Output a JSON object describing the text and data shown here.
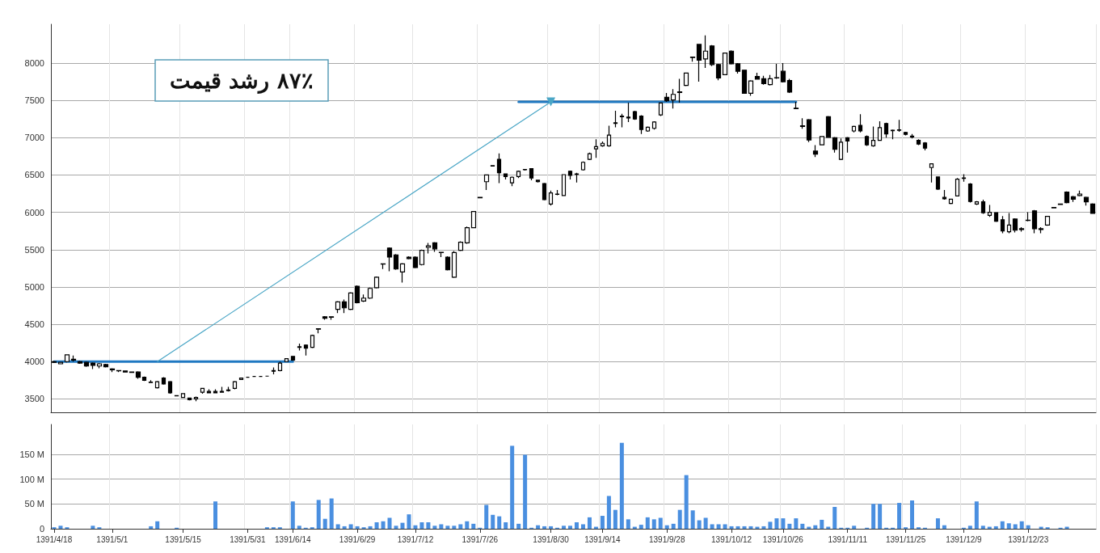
{
  "chart_data": [
    {
      "type": "candlestick",
      "title": "۸۷٪ رشد قیمت",
      "tick_labels": "y",
      "grid": true,
      "line_style": "solid",
      "categories": [
        "1391/4/18",
        null,
        null,
        null,
        null,
        null,
        null,
        null,
        null,
        "1391/5/1",
        null,
        null,
        null,
        null,
        null,
        null,
        null,
        null,
        null,
        null,
        "1391/5/15",
        null,
        null,
        null,
        null,
        null,
        null,
        null,
        null,
        null,
        "1391/5/31",
        null,
        null,
        null,
        null,
        null,
        null,
        "1391/6/14",
        null,
        null,
        null,
        null,
        null,
        null,
        null,
        null,
        null,
        "1391/6/29",
        null,
        null,
        null,
        null,
        null,
        null,
        null,
        null,
        "1391/7/12",
        null,
        null,
        null,
        null,
        null,
        null,
        null,
        null,
        null,
        "1391/7/26",
        null,
        null,
        null,
        null,
        null,
        null,
        null,
        null,
        null,
        null,
        "1391/8/30",
        null,
        null,
        null,
        null,
        null,
        null,
        null,
        "1391/9/14",
        null,
        null,
        null,
        null,
        null,
        null,
        null,
        null,
        null,
        "1391/9/28",
        null,
        null,
        null,
        null,
        null,
        null,
        null,
        null,
        null,
        "1391/10/12",
        null,
        null,
        null,
        null,
        null,
        null,
        null,
        "1391/10/26",
        null,
        null,
        null,
        null,
        null,
        null,
        null,
        null,
        null,
        "1391/11/11",
        null,
        null,
        null,
        null,
        null,
        null,
        null,
        null,
        "1391/11/25",
        null,
        null,
        null,
        null,
        null,
        null,
        null,
        null,
        "1391/12/9",
        null,
        null,
        null,
        null,
        null,
        null,
        null,
        null,
        null,
        "1391/12/23",
        null,
        null,
        null,
        null,
        null,
        null,
        null,
        null,
        null,
        null
      ],
      "ylim": [
        3320,
        8520
      ],
      "yticks": [
        3500,
        4000,
        4500,
        5000,
        5500,
        6000,
        6500,
        7000,
        7500,
        8000
      ],
      "series": [
        {
          "type": "candlestick",
          "color": "#000000",
          "ohlc": [
            [
              4000,
              4010,
              3980,
              3990
            ],
            [
              3970,
              3995,
              3965,
              3990
            ],
            [
              4000,
              4090,
              3990,
              4090
            ],
            [
              4030,
              4080,
              4000,
              4020
            ],
            [
              4000,
              4010,
              3970,
              3980
            ],
            [
              3990,
              4000,
              3930,
              3940
            ],
            [
              3980,
              3990,
              3900,
              3950
            ],
            [
              3940,
              3980,
              3910,
              3970
            ],
            [
              3960,
              3970,
              3920,
              3930
            ],
            [
              3900,
              3910,
              3860,
              3890
            ],
            [
              3880,
              3885,
              3860,
              3875
            ],
            [
              3875,
              3880,
              3855,
              3860
            ],
            [
              3860,
              3865,
              3850,
              3855
            ],
            [
              3860,
              3870,
              3770,
              3790
            ],
            [
              3790,
              3800,
              3740,
              3750
            ],
            [
              3720,
              3750,
              3715,
              3725
            ],
            [
              3650,
              3740,
              3640,
              3730
            ],
            [
              3780,
              3790,
              3690,
              3700
            ],
            [
              3730,
              3740,
              3570,
              3580
            ],
            [
              3545,
              3545,
              3535,
              3540
            ],
            [
              3520,
              3575,
              3515,
              3570
            ],
            [
              3510,
              3515,
              3480,
              3490
            ],
            [
              3500,
              3530,
              3470,
              3520
            ],
            [
              3590,
              3645,
              3570,
              3640
            ],
            [
              3600,
              3630,
              3575,
              3580
            ],
            [
              3600,
              3630,
              3575,
              3580
            ],
            [
              3590,
              3660,
              3585,
              3600
            ],
            [
              3610,
              3660,
              3600,
              3620
            ],
            [
              3640,
              3740,
              3630,
              3730
            ],
            [
              3760,
              3785,
              3755,
              3780
            ],
            [
              3790,
              3795,
              3785,
              3790
            ],
            [
              3800,
              3805,
              3795,
              3800
            ],
            [
              3800,
              3805,
              3795,
              3800
            ],
            [
              3805,
              3810,
              3800,
              3805
            ],
            [
              3870,
              3920,
              3830,
              3880
            ],
            [
              3880,
              4000,
              3870,
              3980
            ],
            [
              4000,
              4045,
              3995,
              4040
            ],
            [
              4070,
              4075,
              4010,
              4020
            ],
            [
              4190,
              4240,
              4150,
              4200
            ],
            [
              4220,
              4230,
              4080,
              4180
            ],
            [
              4190,
              4360,
              4180,
              4350
            ],
            [
              4440,
              4445,
              4380,
              4435
            ],
            [
              4600,
              4610,
              4560,
              4580
            ],
            [
              4600,
              4605,
              4560,
              4595
            ],
            [
              4700,
              4810,
              4650,
              4800
            ],
            [
              4800,
              4830,
              4650,
              4720
            ],
            [
              4700,
              4930,
              4690,
              4920
            ],
            [
              5010,
              5020,
              4780,
              4790
            ],
            [
              4810,
              4900,
              4800,
              4850
            ],
            [
              4850,
              4990,
              4840,
              4980
            ],
            [
              4990,
              5140,
              4980,
              5130
            ],
            [
              5310,
              5315,
              5240,
              5305
            ],
            [
              5520,
              5530,
              5210,
              5400
            ],
            [
              5430,
              5440,
              5230,
              5240
            ],
            [
              5200,
              5320,
              5060,
              5310
            ],
            [
              5400,
              5410,
              5370,
              5380
            ],
            [
              5400,
              5410,
              5250,
              5260
            ],
            [
              5300,
              5500,
              5290,
              5490
            ],
            [
              5530,
              5590,
              5450,
              5550
            ],
            [
              5590,
              5600,
              5470,
              5510
            ],
            [
              5465,
              5470,
              5400,
              5460
            ],
            [
              5400,
              5410,
              5220,
              5230
            ],
            [
              5130,
              5480,
              5120,
              5460
            ],
            [
              5490,
              5610,
              5480,
              5600
            ],
            [
              5590,
              5810,
              5580,
              5795
            ],
            [
              5795,
              6015,
              5790,
              6010
            ],
            [
              6200,
              6205,
              6190,
              6195
            ],
            [
              6410,
              6505,
              6300,
              6500
            ],
            [
              6625,
              6630,
              6615,
              6620
            ],
            [
              6710,
              6790,
              6390,
              6530
            ],
            [
              6515,
              6520,
              6440,
              6480
            ],
            [
              6395,
              6480,
              6350,
              6470
            ],
            [
              6480,
              6560,
              6460,
              6550
            ],
            [
              6570,
              6580,
              6560,
              6575
            ],
            [
              6585,
              6590,
              6430,
              6460
            ],
            [
              6430,
              6435,
              6400,
              6410
            ],
            [
              6385,
              6395,
              6160,
              6170
            ],
            [
              6110,
              6290,
              6090,
              6260
            ],
            [
              6245,
              6300,
              6230,
              6240
            ],
            [
              6225,
              6510,
              6220,
              6505
            ],
            [
              6550,
              6560,
              6440,
              6495
            ],
            [
              6510,
              6530,
              6400,
              6515
            ],
            [
              6570,
              6680,
              6560,
              6670
            ],
            [
              6710,
              6800,
              6700,
              6785
            ],
            [
              6850,
              6980,
              6730,
              6880
            ],
            [
              6890,
              6950,
              6880,
              6925
            ],
            [
              6890,
              7160,
              6880,
              7035
            ],
            [
              7190,
              7360,
              7140,
              7200
            ],
            [
              7290,
              7320,
              7140,
              7280
            ],
            [
              7265,
              7470,
              7210,
              7275
            ],
            [
              7350,
              7360,
              7240,
              7250
            ],
            [
              7290,
              7300,
              7050,
              7110
            ],
            [
              7090,
              7150,
              7080,
              7140
            ],
            [
              7125,
              7220,
              7110,
              7210
            ],
            [
              7305,
              7470,
              7290,
              7465
            ],
            [
              7540,
              7600,
              7480,
              7495
            ],
            [
              7505,
              7650,
              7390,
              7580
            ],
            [
              7605,
              7790,
              7470,
              7615
            ],
            [
              7700,
              7870,
              7690,
              7865
            ],
            [
              8080,
              8085,
              8020,
              8075
            ],
            [
              8250,
              8255,
              7750,
              8040
            ],
            [
              8055,
              8370,
              7935,
              8160
            ],
            [
              8230,
              8240,
              7960,
              7980
            ],
            [
              7980,
              7990,
              7770,
              7800
            ],
            [
              7845,
              8140,
              7840,
              8135
            ],
            [
              8160,
              8170,
              7980,
              7990
            ],
            [
              7990,
              8000,
              7860,
              7890
            ],
            [
              7905,
              7910,
              7590,
              7595
            ],
            [
              7595,
              7770,
              7560,
              7760
            ],
            [
              7820,
              7870,
              7780,
              7785
            ],
            [
              7790,
              7830,
              7710,
              7725
            ],
            [
              7712,
              7840,
              7700,
              7790
            ],
            [
              7800,
              7990,
              7790,
              7805
            ],
            [
              7890,
              8000,
              7740,
              7750
            ],
            [
              7765,
              7790,
              7600,
              7610
            ],
            [
              7395,
              7480,
              7385,
              7390
            ],
            [
              7160,
              7260,
              7120,
              7150
            ],
            [
              7240,
              7250,
              6940,
              6970
            ],
            [
              6820,
              6900,
              6740,
              6780
            ],
            [
              6905,
              7020,
              6900,
              7015
            ],
            [
              7280,
              7290,
              7000,
              7005
            ],
            [
              7000,
              7010,
              6800,
              6845
            ],
            [
              6710,
              6990,
              6700,
              6940
            ],
            [
              7000,
              7010,
              6800,
              6955
            ],
            [
              7090,
              7160,
              7070,
              7150
            ],
            [
              7165,
              7315,
              7070,
              7090
            ],
            [
              7015,
              7030,
              6890,
              6905
            ],
            [
              6890,
              7150,
              6880,
              6965
            ],
            [
              6965,
              7220,
              6960,
              7135
            ],
            [
              7190,
              7200,
              7000,
              7050
            ],
            [
              7100,
              7110,
              6980,
              7095
            ],
            [
              7100,
              7240,
              7080,
              7105
            ],
            [
              7070,
              7080,
              7030,
              7045
            ],
            [
              7020,
              7050,
              6990,
              7010
            ],
            [
              6965,
              6980,
              6900,
              6915
            ],
            [
              6930,
              6940,
              6830,
              6860
            ],
            [
              6600,
              6655,
              6400,
              6650
            ],
            [
              6475,
              6480,
              6300,
              6310
            ],
            [
              6200,
              6300,
              6170,
              6180
            ],
            [
              6120,
              6180,
              6110,
              6175
            ],
            [
              6220,
              6460,
              6215,
              6445
            ],
            [
              6455,
              6510,
              6410,
              6460
            ],
            [
              6380,
              6390,
              6130,
              6145
            ],
            [
              6110,
              6150,
              6100,
              6140
            ],
            [
              6140,
              6170,
              5980,
              5995
            ],
            [
              5960,
              6100,
              5940,
              6000
            ],
            [
              5995,
              6000,
              5870,
              5880
            ],
            [
              5900,
              5950,
              5720,
              5750
            ],
            [
              5740,
              5990,
              5720,
              5830
            ],
            [
              5910,
              5920,
              5730,
              5760
            ],
            [
              5770,
              5800,
              5740,
              5780
            ],
            [
              5890,
              6000,
              5880,
              5895
            ],
            [
              6020,
              6030,
              5720,
              5780
            ],
            [
              5770,
              5800,
              5720,
              5780
            ],
            [
              5830,
              5950,
              5820,
              5945
            ],
            [
              6060,
              6070,
              6055,
              6065
            ],
            [
              6105,
              6115,
              6100,
              6110
            ],
            [
              6270,
              6280,
              6120,
              6130
            ],
            [
              6210,
              6220,
              6140,
              6175
            ],
            [
              6225,
              6290,
              6215,
              6245
            ],
            [
              6200,
              6210,
              6090,
              6140
            ],
            [
              6110,
              6120,
              5980,
              5985
            ]
          ]
        },
        {
          "type": "line",
          "color": "#1f78c1",
          "values": [
            4000,
            4000,
            4000,
            4000,
            4000,
            4000,
            4000,
            4000,
            4000,
            4000,
            4000,
            4000,
            4000,
            4000,
            4000,
            4000,
            4000,
            4000,
            4000,
            4000,
            4000,
            4000,
            4000,
            4000,
            4000,
            4000,
            4000,
            4000,
            4000,
            4000,
            4000,
            4000,
            4000,
            4000,
            4000,
            4000,
            4000,
            4000,
            null,
            null,
            null,
            null,
            null,
            null,
            null,
            null,
            null,
            null,
            null,
            null,
            null,
            null,
            null,
            null,
            null,
            null,
            null,
            null,
            null,
            null,
            null,
            null,
            null,
            null,
            null,
            null,
            null,
            null,
            null,
            null,
            null,
            null,
            null,
            null,
            null,
            null,
            null,
            null,
            null,
            null,
            null,
            null,
            null,
            null,
            null,
            null,
            null,
            null,
            null,
            null,
            null,
            null,
            null,
            null,
            null,
            null,
            null,
            null,
            null,
            null,
            null,
            null,
            null,
            null,
            null,
            null,
            null,
            null,
            null,
            null,
            null,
            null,
            null,
            null,
            null,
            null,
            null,
            null,
            null,
            null,
            null,
            null,
            null,
            null,
            null,
            null,
            null,
            null,
            null,
            null,
            null,
            null,
            null,
            null,
            null,
            null,
            null,
            null,
            null,
            null,
            null,
            null,
            null,
            null,
            null,
            null,
            null,
            null,
            null,
            null,
            null,
            null,
            null,
            null,
            null,
            null,
            null,
            null,
            null,
            null,
            null,
            null
          ]
        },
        {
          "type": "line",
          "color": "#1f78c1",
          "values": [
            null,
            null,
            null,
            null,
            null,
            null,
            null,
            null,
            null,
            null,
            null,
            null,
            null,
            null,
            null,
            null,
            null,
            null,
            null,
            null,
            null,
            null,
            null,
            null,
            null,
            null,
            null,
            null,
            null,
            null,
            null,
            null,
            null,
            null,
            null,
            null,
            null,
            null,
            null,
            null,
            null,
            null,
            null,
            null,
            null,
            null,
            null,
            null,
            null,
            null,
            null,
            null,
            null,
            null,
            null,
            null,
            null,
            null,
            null,
            null,
            null,
            null,
            null,
            null,
            null,
            null,
            null,
            null,
            null,
            null,
            null,
            null,
            7480,
            7480,
            7480,
            7480,
            7480,
            7480,
            7480,
            7480,
            7480,
            7480,
            7480,
            7480,
            7480,
            7480,
            7480,
            7480,
            7480,
            7480,
            7480,
            7480,
            7480,
            7480,
            7480,
            7480,
            7480,
            7480,
            7480,
            7480,
            7480,
            7480,
            7480,
            7480,
            7480,
            7480,
            7480,
            7480,
            7480,
            7480,
            7480,
            7480,
            7480,
            7480,
            7480,
            7480,
            null,
            null,
            null,
            null,
            null,
            null,
            null,
            null,
            null,
            null,
            null,
            null,
            null,
            null,
            null,
            null,
            null,
            null,
            null,
            null,
            null,
            null,
            null,
            null,
            null,
            null,
            null,
            null,
            null,
            null,
            null,
            null,
            null,
            null,
            null,
            null,
            null,
            null,
            null,
            null,
            null,
            null,
            null,
            null,
            null,
            null
          ]
        },
        {
          "type": "line",
          "color": "#4aa6c6",
          "marker": "triangle",
          "values": [
            null,
            null,
            null,
            null,
            null,
            null,
            null,
            null,
            null,
            null,
            null,
            null,
            null,
            null,
            null,
            null,
            4000,
            null,
            null,
            null,
            null,
            null,
            null,
            null,
            null,
            null,
            null,
            null,
            null,
            null,
            null,
            null,
            null,
            null,
            null,
            null,
            null,
            null,
            null,
            null,
            null,
            null,
            null,
            null,
            null,
            null,
            null,
            null,
            null,
            null,
            null,
            null,
            null,
            null,
            null,
            null,
            null,
            null,
            null,
            null,
            null,
            null,
            null,
            null,
            null,
            null,
            null,
            null,
            null,
            null,
            null,
            null,
            null,
            null,
            null,
            null,
            null,
            7480,
            null,
            null,
            null,
            null,
            null,
            null,
            null,
            null,
            null,
            null,
            null,
            null,
            null,
            null,
            null,
            null,
            null,
            null,
            null,
            null,
            null,
            null,
            null,
            null,
            null,
            null,
            null,
            null,
            null,
            null,
            null,
            null,
            null,
            null,
            null,
            null,
            null,
            null,
            null,
            null,
            null,
            null,
            null,
            null,
            null,
            null,
            null,
            null,
            null,
            null,
            null,
            null,
            null,
            null,
            null,
            null,
            null,
            null,
            null,
            null,
            null,
            null,
            null,
            null,
            null,
            null,
            null,
            null,
            null,
            null,
            null,
            null,
            null,
            null,
            null,
            null,
            null,
            null,
            null,
            null,
            null,
            null,
            null,
            null
          ]
        }
      ]
    },
    {
      "type": "bar",
      "grid": true,
      "categories": [
        "1391/4/18",
        null,
        null,
        null,
        null,
        null,
        null,
        null,
        null,
        "1391/5/1",
        null,
        null,
        null,
        null,
        null,
        null,
        null,
        null,
        null,
        null,
        "1391/5/15",
        null,
        null,
        null,
        null,
        null,
        null,
        null,
        null,
        null,
        "1391/5/31",
        null,
        null,
        null,
        null,
        null,
        null,
        "1391/6/14",
        null,
        null,
        null,
        null,
        null,
        null,
        null,
        null,
        null,
        "1391/6/29",
        null,
        null,
        null,
        null,
        null,
        null,
        null,
        null,
        "1391/7/12",
        null,
        null,
        null,
        null,
        null,
        null,
        null,
        null,
        null,
        "1391/7/26",
        null,
        null,
        null,
        null,
        null,
        null,
        null,
        null,
        null,
        null,
        "1391/8/30",
        null,
        null,
        null,
        null,
        null,
        null,
        null,
        "1391/9/14",
        null,
        null,
        null,
        null,
        null,
        null,
        null,
        null,
        null,
        "1391/9/28",
        null,
        null,
        null,
        null,
        null,
        null,
        null,
        null,
        null,
        "1391/10/12",
        null,
        null,
        null,
        null,
        null,
        null,
        null,
        "1391/10/26",
        null,
        null,
        null,
        null,
        null,
        null,
        null,
        null,
        null,
        "1391/11/11",
        null,
        null,
        null,
        null,
        null,
        null,
        null,
        null,
        "1391/11/25",
        null,
        null,
        null,
        null,
        null,
        null,
        null,
        null,
        "1391/12/9",
        null,
        null,
        null,
        null,
        null,
        null,
        null,
        null,
        null,
        "1391/12/23",
        null,
        null,
        null,
        null,
        null,
        null,
        null,
        null,
        null,
        null
      ],
      "ylim": [
        0,
        210
      ],
      "yticks": [
        0,
        {
          "value": 50,
          "label": "50 M"
        },
        {
          "value": 100,
          "label": "100 M"
        },
        {
          "value": 150,
          "label": "150 M"
        }
      ],
      "series": [
        {
          "color": "#4a8fe0",
          "values": [
            3,
            6,
            3,
            0,
            0,
            0,
            6,
            3,
            0,
            0,
            0,
            0,
            0,
            0,
            0,
            5,
            15,
            0,
            0,
            2,
            0,
            0,
            0,
            0,
            0,
            55,
            0,
            0,
            0,
            0,
            0,
            0,
            0,
            3,
            3,
            3,
            0,
            55,
            6,
            2,
            3,
            58,
            20,
            61,
            9,
            5,
            9,
            5,
            3,
            5,
            13,
            15,
            22,
            6,
            12,
            29,
            7,
            13,
            13,
            6,
            9,
            6,
            6,
            9,
            15,
            10,
            2,
            48,
            28,
            25,
            13,
            167,
            10,
            149,
            2,
            7,
            5,
            5,
            2,
            6,
            6,
            13,
            9,
            23,
            4,
            26,
            66,
            38,
            173,
            19,
            4,
            8,
            23,
            19,
            22,
            7,
            10,
            38,
            108,
            37,
            17,
            22,
            9,
            9,
            9,
            5,
            5,
            5,
            5,
            4,
            5,
            14,
            21,
            21,
            10,
            21,
            10,
            4,
            7,
            18,
            4,
            44,
            2,
            2,
            6,
            0,
            2,
            50,
            50,
            2,
            2,
            52,
            3,
            57,
            3,
            2,
            0,
            21,
            7,
            0,
            0,
            2,
            6,
            55,
            6,
            4,
            5,
            15,
            11,
            9,
            15,
            7,
            0,
            4,
            3,
            0,
            2,
            4,
            0,
            0,
            0,
            0
          ]
        }
      ]
    }
  ]
}
